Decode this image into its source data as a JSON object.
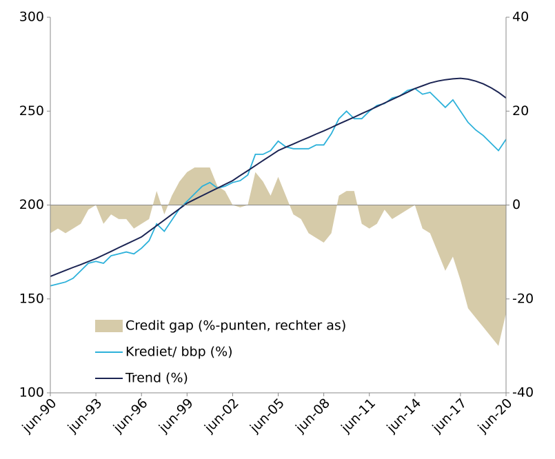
{
  "chart_data": {
    "type": "line",
    "categories": [
      "jun-90",
      null,
      null,
      null,
      null,
      null,
      "jun-93",
      null,
      null,
      null,
      null,
      null,
      "jun-96",
      null,
      null,
      null,
      null,
      null,
      "jun-99",
      null,
      null,
      null,
      null,
      null,
      "jun-02",
      null,
      null,
      null,
      null,
      null,
      "jun-05",
      null,
      null,
      null,
      null,
      null,
      "jun-08",
      null,
      null,
      null,
      null,
      null,
      "jun-11",
      null,
      null,
      null,
      null,
      null,
      "jun-14",
      null,
      null,
      null,
      null,
      null,
      "jun-17",
      null,
      null,
      null,
      null,
      null,
      "jun-20"
    ],
    "series": [
      {
        "name": "Credit gap (%-punten, rechter as)",
        "type": "area",
        "axis": "y2",
        "color": "#d6cba9",
        "values": [
          -6,
          -5,
          -6,
          -5,
          -4,
          -1,
          0,
          -4,
          -2,
          -3,
          -3,
          -5,
          -4,
          -3,
          3,
          -2,
          2,
          5,
          7,
          8,
          8,
          8,
          4,
          3,
          0,
          -0.5,
          0,
          7,
          5,
          2,
          6,
          2,
          -2,
          -3,
          -6,
          -7,
          -8,
          -6,
          2,
          3,
          3,
          -4,
          -5,
          -4,
          -1,
          -3,
          -2,
          -1,
          0,
          -5,
          -6,
          -10,
          -14,
          -11,
          -16,
          -22,
          -24,
          -26,
          -28,
          -30,
          -23
        ]
      },
      {
        "name": "Krediet/ bbp (%)",
        "type": "line",
        "color": "#2cb1da",
        "values": [
          157,
          158,
          159,
          161,
          165,
          169,
          170,
          169,
          173,
          174,
          175,
          174,
          177,
          181,
          190,
          186,
          192,
          198,
          202,
          206,
          210,
          212,
          209,
          210,
          212,
          213,
          216,
          227,
          227,
          229,
          234,
          231,
          230,
          230,
          230,
          232,
          232,
          238,
          246,
          250,
          246,
          246,
          250,
          253,
          254,
          257,
          258,
          261,
          262,
          259,
          260,
          256,
          252,
          256,
          250,
          244,
          240,
          237,
          233,
          229,
          235
        ]
      },
      {
        "name": "Trend (%)",
        "type": "line",
        "color": "#1b2453",
        "values": [
          162,
          163.6,
          165.2,
          166.8,
          168.3,
          169.9,
          171.5,
          173.4,
          175.3,
          177.3,
          179.2,
          181.1,
          183,
          186,
          189,
          192,
          195,
          198,
          201,
          203,
          205,
          207,
          209,
          211,
          213,
          215.7,
          218.3,
          221,
          223.7,
          226.3,
          229,
          230.8,
          232.5,
          234.3,
          236,
          237.8,
          239.5,
          241.3,
          243.2,
          245,
          246.8,
          248.7,
          250.5,
          252.4,
          254.3,
          256.2,
          258.1,
          260,
          262,
          263.5,
          265,
          266,
          266.7,
          267.2,
          267.5,
          267,
          266,
          264.5,
          262.5,
          260,
          257
        ]
      }
    ],
    "ylim": [
      100,
      300
    ],
    "yticks": [
      100,
      150,
      200,
      250,
      300
    ],
    "y2lim": [
      -40,
      40
    ],
    "y2ticks": [
      -40,
      -20,
      0,
      20,
      40
    ],
    "legend": "lower left"
  }
}
